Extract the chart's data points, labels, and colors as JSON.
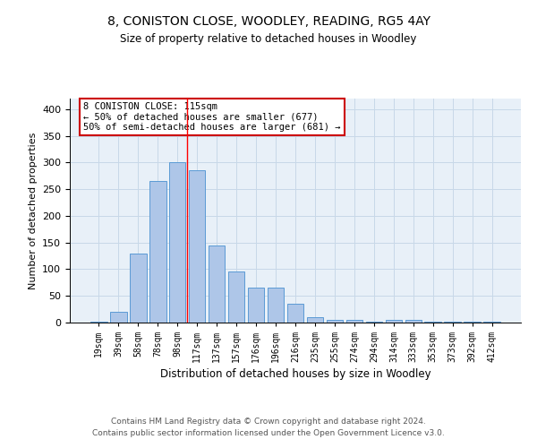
{
  "title1": "8, CONISTON CLOSE, WOODLEY, READING, RG5 4AY",
  "title2": "Size of property relative to detached houses in Woodley",
  "xlabel": "Distribution of detached houses by size in Woodley",
  "ylabel": "Number of detached properties",
  "categories": [
    "19sqm",
    "39sqm",
    "58sqm",
    "78sqm",
    "98sqm",
    "117sqm",
    "137sqm",
    "157sqm",
    "176sqm",
    "196sqm",
    "216sqm",
    "235sqm",
    "255sqm",
    "274sqm",
    "294sqm",
    "314sqm",
    "333sqm",
    "353sqm",
    "373sqm",
    "392sqm",
    "412sqm"
  ],
  "values": [
    2,
    20,
    130,
    265,
    300,
    285,
    145,
    95,
    65,
    65,
    35,
    10,
    5,
    5,
    1,
    5,
    5,
    1,
    1,
    1,
    2
  ],
  "bar_color": "#aec6e8",
  "bar_edge_color": "#5b9bd5",
  "grid_color": "#c8d8e8",
  "background_color": "#e8f0f8",
  "red_line_index": 5,
  "annotation_text": "8 CONISTON CLOSE: 115sqm\n← 50% of detached houses are smaller (677)\n50% of semi-detached houses are larger (681) →",
  "annotation_box_color": "#ffffff",
  "annotation_box_edge": "#cc0000",
  "footer1": "Contains HM Land Registry data © Crown copyright and database right 2024.",
  "footer2": "Contains public sector information licensed under the Open Government Licence v3.0.",
  "ylim": [
    0,
    420
  ],
  "yticks": [
    0,
    50,
    100,
    150,
    200,
    250,
    300,
    350,
    400
  ],
  "fig_width": 6.0,
  "fig_height": 5.0,
  "fig_dpi": 100
}
